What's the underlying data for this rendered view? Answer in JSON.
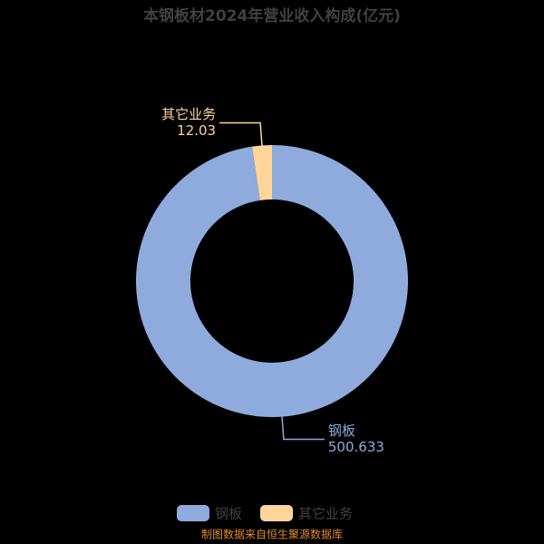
{
  "chart_data": {
    "type": "donut",
    "title": "本钢板材2024年营业收入构成(亿元)",
    "categories": [
      "钢板",
      "其它业务"
    ],
    "values": [
      500.633,
      12.03
    ],
    "colors": [
      "#8faadc",
      "#ffd59a"
    ],
    "source": "制图数据来自恒生聚源数据库"
  }
}
